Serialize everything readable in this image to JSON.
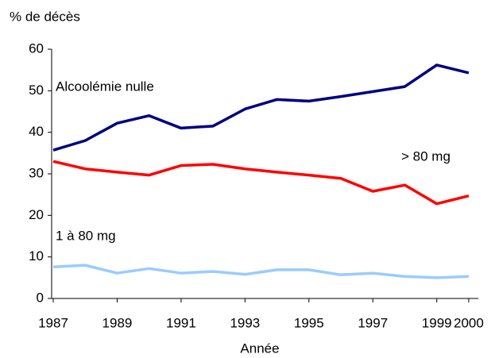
{
  "chart_data": {
    "type": "line",
    "y_axis_label": "% de décès",
    "x_axis_label": "Année",
    "x": [
      1987,
      1988,
      1989,
      1990,
      1991,
      1992,
      1993,
      1994,
      1995,
      1996,
      1997,
      1998,
      1999,
      2000
    ],
    "series": [
      {
        "name": "Alcoolémie nulle",
        "color": "#000080",
        "values": [
          35.7,
          38,
          42.2,
          44,
          41,
          41.5,
          45.6,
          47.9,
          47.5,
          48.6,
          49.8,
          51,
          56.2,
          54.3
        ]
      },
      {
        "name": "> 80 mg",
        "color": "#ff0000",
        "values": [
          33,
          31.2,
          30.4,
          29.7,
          32,
          32.3,
          31.2,
          30.4,
          29.7,
          28.9,
          25.8,
          27.3,
          22.8,
          24.7
        ]
      },
      {
        "name": "1 à 80 mg",
        "color": "#99ccff",
        "values": [
          7.6,
          8,
          6.1,
          7.2,
          6.1,
          6.5,
          5.8,
          6.9,
          6.9,
          5.7,
          6.1,
          5.3,
          5,
          5.3
        ]
      }
    ],
    "xlim": [
      1986.95,
      2000.3
    ],
    "xticks": [
      1987,
      1989,
      1991,
      1993,
      1995,
      1997,
      1999,
      2000
    ],
    "ylim": [
      0,
      60
    ],
    "yticks": [
      0,
      10,
      20,
      30,
      40,
      50,
      60
    ]
  }
}
